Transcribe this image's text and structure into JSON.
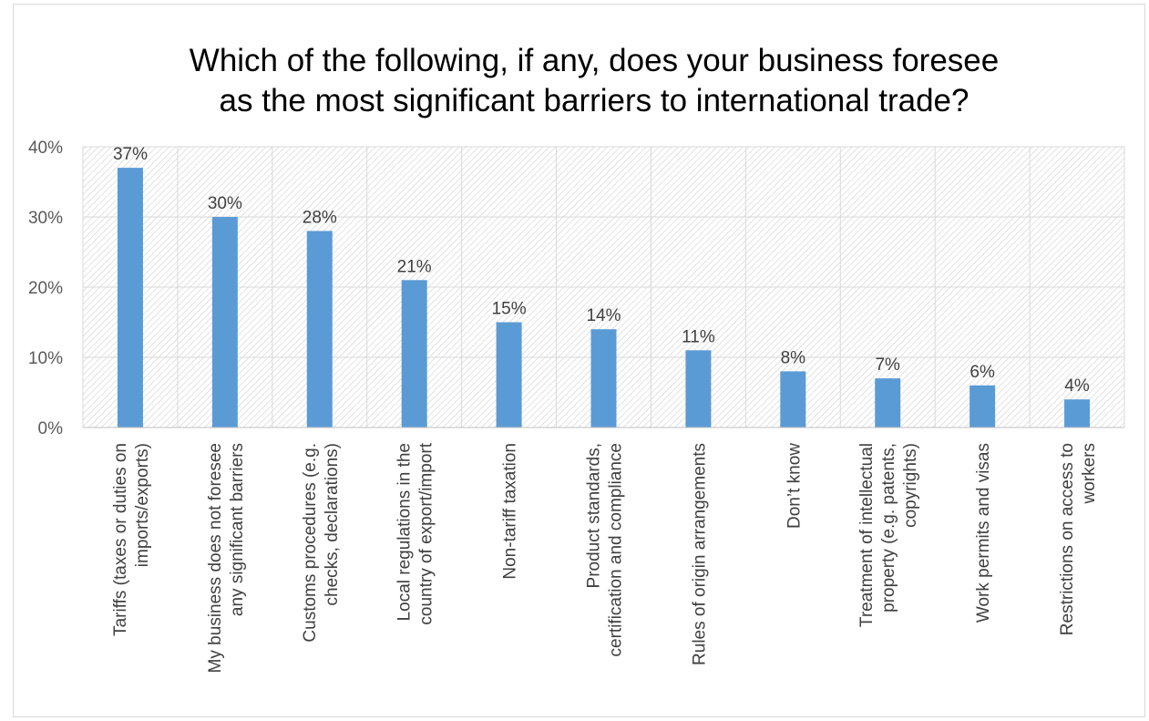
{
  "chart_data": {
    "type": "bar",
    "title_lines": [
      "Which of the following, if any, does your business foresee",
      "as the most significant barriers to international trade?"
    ],
    "categories": [
      [
        "Tariffs (taxes or duties on",
        "imports/exports)"
      ],
      [
        "My business does not foresee",
        "any significant barriers"
      ],
      [
        "Customs procedures (e.g.",
        "checks, declarations)"
      ],
      [
        "Local regulations in the",
        "country of export/import"
      ],
      [
        "Non-tariff taxation"
      ],
      [
        "Product standards,",
        "certification and compliance"
      ],
      [
        "Rules of origin arrangements"
      ],
      [
        "Don’t know"
      ],
      [
        "Treatment of intellectual",
        "property (e.g. patents,",
        "copyrights)"
      ],
      [
        "Work permits and visas"
      ],
      [
        "Restrictions on access to",
        "workers"
      ]
    ],
    "values": [
      37,
      30,
      28,
      21,
      15,
      14,
      11,
      8,
      7,
      6,
      4
    ],
    "data_labels": [
      "37%",
      "30%",
      "28%",
      "21%",
      "15%",
      "14%",
      "11%",
      "8%",
      "7%",
      "6%",
      "4%"
    ],
    "y_ticks": [
      0,
      10,
      20,
      30,
      40
    ],
    "y_tick_labels": [
      "0%",
      "10%",
      "20%",
      "30%",
      "40%"
    ],
    "ylim": [
      0,
      40
    ],
    "grid": true,
    "legend": "none",
    "colors": {
      "bar": "#5b9bd5",
      "gridline": "#d9d9d9",
      "plot_hatch": "#d0d0d0"
    }
  }
}
